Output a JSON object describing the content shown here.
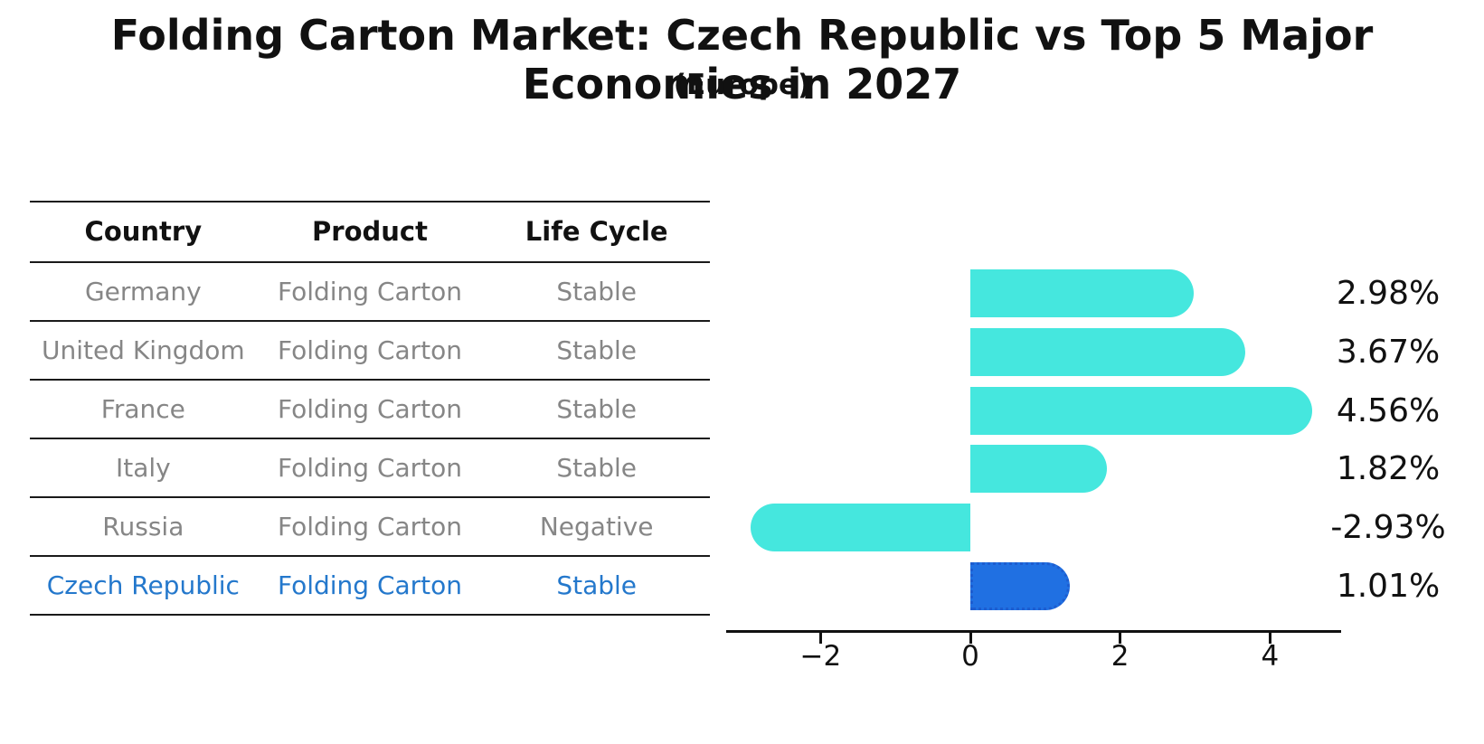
{
  "title": "Folding Carton Market: Czech Republic vs Top 5 Major Economies in 2027",
  "subtitle": "(Europe)",
  "table": {
    "headers": [
      "Country",
      "Product",
      "Life Cycle"
    ],
    "rows": [
      {
        "country": "Germany",
        "product": "Folding Carton",
        "life_cycle": "Stable",
        "highlighted": false
      },
      {
        "country": "United Kingdom",
        "product": "Folding Carton",
        "life_cycle": "Stable",
        "highlighted": false
      },
      {
        "country": "France",
        "product": "Folding Carton",
        "life_cycle": "Stable",
        "highlighted": false
      },
      {
        "country": "Italy",
        "product": "Folding Carton",
        "life_cycle": "Stable",
        "highlighted": false
      },
      {
        "country": "Russia",
        "product": "Folding Carton",
        "life_cycle": "Negative",
        "highlighted": false
      },
      {
        "country": "Czech Republic",
        "product": "Folding Carton",
        "life_cycle": "Stable",
        "highlighted": true
      }
    ]
  },
  "chart_data": {
    "type": "bar",
    "orientation": "horizontal",
    "title": "Folding Carton Market: Czech Republic vs Top 5 Major Economies in 2027 (Europe)",
    "categories": [
      "Germany",
      "United Kingdom",
      "France",
      "Italy",
      "Russia",
      "Czech Republic"
    ],
    "values": [
      2.98,
      3.67,
      4.56,
      1.82,
      -2.93,
      1.01
    ],
    "value_labels": [
      "2.98%",
      "3.67%",
      "4.56%",
      "1.82%",
      "-2.93%",
      "1.01%"
    ],
    "unit": "percent CAGR",
    "x_ticks": [
      "−2",
      "0",
      "2",
      "4"
    ],
    "x_tick_values": [
      -2,
      0,
      2,
      4
    ],
    "xlim": [
      -3.26,
      4.95
    ],
    "grid": false,
    "legend": false,
    "highlight_index": 5,
    "bar_color": "#45e7de",
    "highlight_color": "#2070e2",
    "highlight_border_color": "#1d5dd0",
    "text_gray": "#868686",
    "highlight_text_color": "#2478cc"
  }
}
